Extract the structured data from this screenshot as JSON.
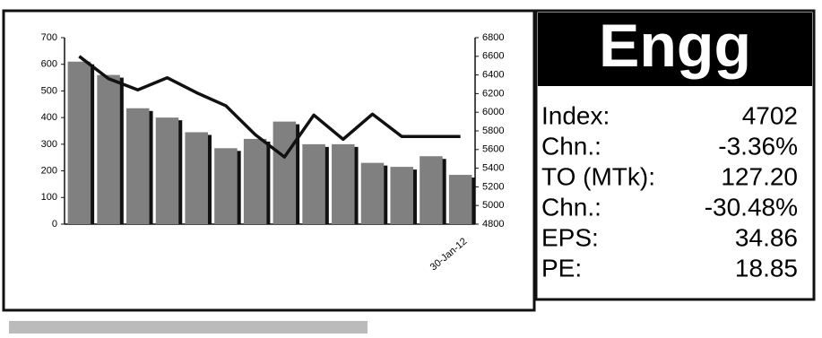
{
  "chart_data": {
    "type": "bar-line",
    "categories": [
      null,
      null,
      null,
      null,
      null,
      null,
      null,
      null,
      null,
      null,
      null,
      null,
      null,
      "30-Jan-12"
    ],
    "series": [
      {
        "type": "bar",
        "color": "#808080",
        "values": [
          610,
          560,
          435,
          400,
          345,
          285,
          320,
          385,
          300,
          300,
          230,
          215,
          255,
          185
        ]
      },
      {
        "type": "line",
        "color": "#111111",
        "axis": "y2",
        "values": [
          6600,
          6360,
          6240,
          6370,
          6210,
          6070,
          5760,
          5520,
          5970,
          5710,
          5980,
          5740,
          5740,
          5740
        ]
      }
    ],
    "ylim": [
      0,
      700
    ],
    "yticks": [
      0,
      100,
      200,
      300,
      400,
      500,
      600,
      700
    ],
    "y2lim": [
      4800,
      6800
    ],
    "y2ticks": [
      4800,
      5000,
      5200,
      5400,
      5600,
      5800,
      6000,
      6200,
      6400,
      6600,
      6800
    ],
    "grid": false
  },
  "panel": {
    "title": "Engg",
    "rows": [
      [
        "Index:",
        "4702"
      ],
      [
        "Chn.:",
        "-3.36%"
      ],
      [
        "TO (MTk):",
        "127.20"
      ],
      [
        "Chn.:",
        "-30.48%"
      ],
      [
        "EPS:",
        "34.86"
      ],
      [
        "PE:",
        "18.85"
      ]
    ]
  }
}
